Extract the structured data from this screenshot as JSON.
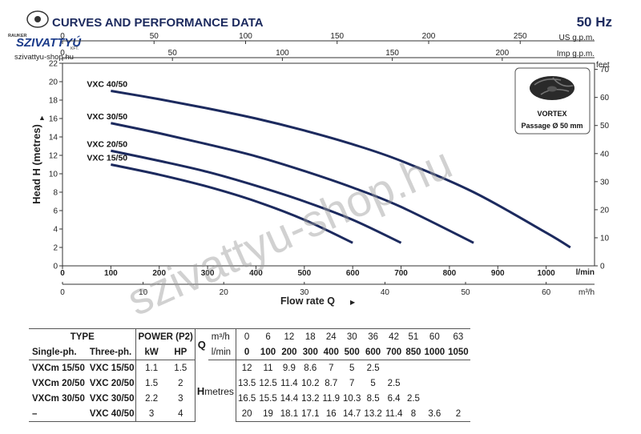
{
  "header": {
    "title": "CURVES AND PERFORMANCE DATA",
    "frequency": "50 Hz",
    "logo_text": "SZIVATTYÚ",
    "logo_small": "RAUKER",
    "logo_suffix": "KFT.",
    "website": "szivattyu-shop.hu",
    "watermark": "szivattyu-shop.hu"
  },
  "vortex_box": {
    "line1": "VORTEX",
    "line2": "Passage Ø 50 mm"
  },
  "chart_data": {
    "type": "line",
    "xlabel": "Flow rate Q",
    "ylabel": "Head H (metres)",
    "x_unit": "l/min",
    "xlim": [
      0,
      1100
    ],
    "ylim": [
      0,
      22
    ],
    "x_ticks": [
      0,
      100,
      200,
      300,
      400,
      500,
      600,
      700,
      800,
      900,
      1000
    ],
    "y_ticks": [
      0,
      2,
      4,
      6,
      8,
      10,
      12,
      14,
      16,
      18,
      20,
      22
    ],
    "secondary_axes": {
      "us_gpm": {
        "label": "US g.p.m.",
        "ticks": [
          0,
          50,
          100,
          150,
          200,
          250
        ]
      },
      "imp_gpm": {
        "label": "Imp g.p.m.",
        "ticks": [
          0,
          50,
          100,
          150,
          200
        ]
      },
      "m3h": {
        "label": "m³/h",
        "ticks": [
          0,
          10,
          20,
          30,
          40,
          50,
          60
        ]
      },
      "feet": {
        "label": "feet",
        "ticks": [
          0,
          10,
          20,
          30,
          40,
          50,
          60,
          70
        ]
      }
    },
    "series": [
      {
        "name": "VXC 15/50",
        "x": [
          100,
          200,
          300,
          400,
          500,
          600
        ],
        "y": [
          11,
          9.9,
          8.6,
          7,
          5,
          2.5
        ]
      },
      {
        "name": "VXC 20/50",
        "x": [
          100,
          200,
          300,
          400,
          500,
          600,
          700
        ],
        "y": [
          12.5,
          11.4,
          10.2,
          8.7,
          7,
          5,
          2.5
        ]
      },
      {
        "name": "VXC 30/50",
        "x": [
          100,
          200,
          300,
          400,
          500,
          600,
          700,
          850
        ],
        "y": [
          15.5,
          14.4,
          13.2,
          11.9,
          10.3,
          8.5,
          6.4,
          2.5
        ]
      },
      {
        "name": "VXC 40/50",
        "x": [
          100,
          200,
          300,
          400,
          500,
          600,
          700,
          850,
          1000,
          1050
        ],
        "y": [
          19,
          18.1,
          17.1,
          16,
          14.7,
          13.2,
          11.4,
          8,
          3.6,
          2
        ]
      }
    ],
    "grid": false,
    "legend": "none"
  },
  "table": {
    "type_label": "TYPE",
    "power_label": "POWER (P2)",
    "q_label": "Q",
    "m3h_label": "m³/h",
    "lmin_label": "l/min",
    "single_label": "Single-ph.",
    "three_label": "Three-ph.",
    "kw_label": "kW",
    "hp_label": "HP",
    "h_label": "H",
    "metres_label": "metres",
    "m3h_values": [
      "0",
      "6",
      "12",
      "18",
      "24",
      "30",
      "36",
      "42",
      "51",
      "60",
      "63"
    ],
    "lmin_values": [
      "0",
      "100",
      "200",
      "300",
      "400",
      "500",
      "600",
      "700",
      "850",
      "1000",
      "1050"
    ],
    "rows": [
      {
        "single": "VXCm 15/50",
        "three": "VXC 15/50",
        "kw": "1.1",
        "hp": "1.5",
        "h": [
          "12",
          "11",
          "9.9",
          "8.6",
          "7",
          "5",
          "2.5",
          "",
          "",
          "",
          ""
        ]
      },
      {
        "single": "VXCm 20/50",
        "three": "VXC 20/50",
        "kw": "1.5",
        "hp": "2",
        "h": [
          "13.5",
          "12.5",
          "11.4",
          "10.2",
          "8.7",
          "7",
          "5",
          "2.5",
          "",
          "",
          ""
        ]
      },
      {
        "single": "VXCm 30/50",
        "three": "VXC 30/50",
        "kw": "2.2",
        "hp": "3",
        "h": [
          "16.5",
          "15.5",
          "14.4",
          "13.2",
          "11.9",
          "10.3",
          "8.5",
          "6.4",
          "2.5",
          "",
          ""
        ]
      },
      {
        "single": "–",
        "three": "VXC 40/50",
        "kw": "3",
        "hp": "4",
        "h": [
          "20",
          "19",
          "18.1",
          "17.1",
          "16",
          "14.7",
          "13.2",
          "11.4",
          "8",
          "3.6",
          "2"
        ]
      }
    ]
  },
  "colors": {
    "curve": "#1c2a5e",
    "axis": "#333333",
    "watermark": "#b0b0b0"
  }
}
